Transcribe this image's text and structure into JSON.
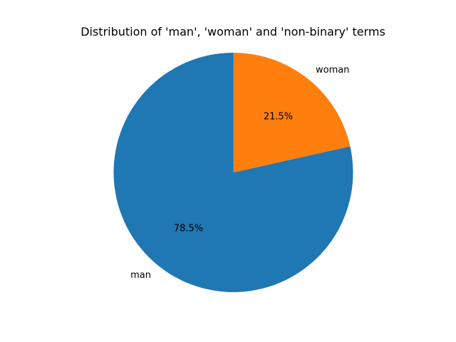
{
  "chart_data": {
    "type": "pie",
    "title": "Distribution of 'man', 'woman' and 'non-binary' terms",
    "categories": [
      "man",
      "woman"
    ],
    "values": [
      78.5,
      21.5
    ],
    "percent_labels": [
      "78.5%",
      "21.5%"
    ],
    "colors": [
      "#1f77b4",
      "#ff7f0e"
    ],
    "start_angle_deg": 90,
    "direction": "counterclockwise",
    "legend": false
  }
}
